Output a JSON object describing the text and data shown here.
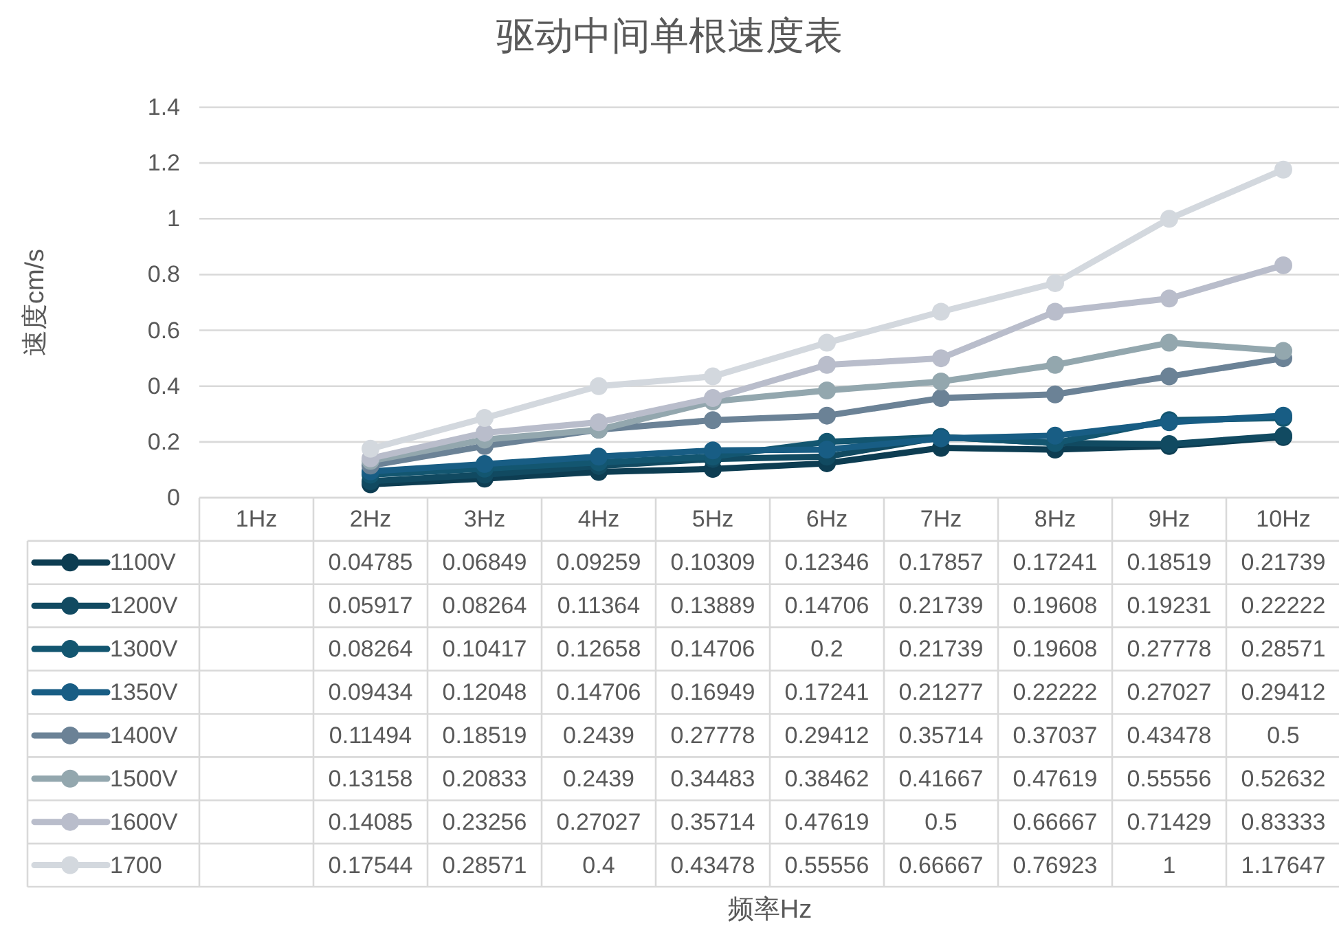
{
  "chart_data": {
    "type": "line",
    "title": "驱动中间单根速度表",
    "annotations": [
      "频率Hz"
    ],
    "ylabel": "速度cm/s",
    "categories": [
      "1Hz",
      "2Hz",
      "3Hz",
      "4Hz",
      "5Hz",
      "6Hz",
      "7Hz",
      "8Hz",
      "9Hz",
      "10Hz"
    ],
    "ylim": [
      0,
      1.4
    ],
    "yticks": [
      0,
      0.2,
      0.4,
      0.6,
      0.8,
      1,
      1.2,
      1.4
    ],
    "grid": "y",
    "marker": "circle",
    "legend": "bottom",
    "data_labels": true,
    "series": [
      {
        "name": "1100V",
        "color": "#0d3d52",
        "values": [
          null,
          0.04785,
          0.06849,
          0.09259,
          0.10309,
          0.12346,
          0.17857,
          0.17241,
          0.18519,
          0.21739
        ]
      },
      {
        "name": "1200V",
        "color": "#114a61",
        "values": [
          null,
          0.05917,
          0.08264,
          0.11364,
          0.13889,
          0.14706,
          0.21739,
          0.19608,
          0.19231,
          0.22222
        ]
      },
      {
        "name": "1300V",
        "color": "#135670",
        "values": [
          null,
          0.08264,
          0.10417,
          0.12658,
          0.14706,
          0.2,
          0.21739,
          0.19608,
          0.27778,
          0.28571
        ]
      },
      {
        "name": "1350V",
        "color": "#185d84",
        "values": [
          null,
          0.09434,
          0.12048,
          0.14706,
          0.16949,
          0.17241,
          0.21277,
          0.22222,
          0.27027,
          0.29412
        ]
      },
      {
        "name": "1400V",
        "color": "#6b8296",
        "values": [
          null,
          0.11494,
          0.18519,
          0.2439,
          0.27778,
          0.29412,
          0.35714,
          0.37037,
          0.43478,
          0.5
        ]
      },
      {
        "name": "1500V",
        "color": "#93a7ae",
        "values": [
          null,
          0.13158,
          0.20833,
          0.2439,
          0.34483,
          0.38462,
          0.41667,
          0.47619,
          0.55556,
          0.52632
        ]
      },
      {
        "name": "1600V",
        "color": "#b9bdcb",
        "values": [
          null,
          0.14085,
          0.23256,
          0.27027,
          0.35714,
          0.47619,
          0.5,
          0.66667,
          0.71429,
          0.83333
        ]
      },
      {
        "name": "1700",
        "color": "#d3d8de",
        "values": [
          null,
          0.17544,
          0.28571,
          0.4,
          0.43478,
          0.55556,
          0.66667,
          0.76923,
          1,
          1.17647
        ]
      }
    ]
  }
}
